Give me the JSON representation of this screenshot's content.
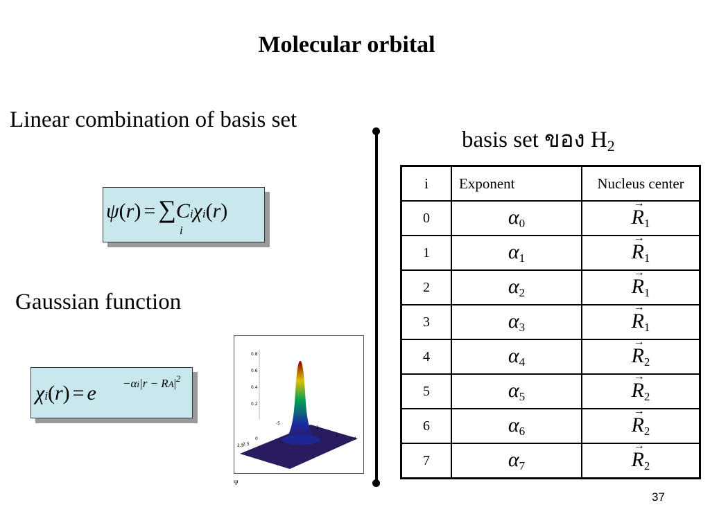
{
  "slide": {
    "title": "Molecular orbital",
    "linear_heading": "Linear combination of basis set",
    "gaussian_heading": "Gaussian function",
    "basis_heading_prefix": "basis set ของ H",
    "basis_heading_sub": "2",
    "page_number": "37",
    "psi_label": "Ψ"
  },
  "equations": {
    "mo": {
      "lhs_psi": "ψ",
      "paren_l": "(",
      "var_r": "r",
      "paren_r": ")",
      "equals": "=",
      "sum": "∑",
      "sum_index": "i",
      "C": "C",
      "C_sub": "i",
      "chi": "χ",
      "chi_sub": "i"
    },
    "gauss": {
      "chi": "χ",
      "chi_sub": "i",
      "var_r": "r",
      "equals": "=",
      "e": "e",
      "exponent": "−α",
      "exponent_sub": "i",
      "abs_expr": "|r − R",
      "abs_sub": "A",
      "power": "2"
    }
  },
  "table": {
    "headers": [
      "i",
      "Exponent",
      "Nucleus center"
    ],
    "rows": [
      {
        "i": "0",
        "alpha": "α",
        "alpha_sub": "0",
        "R": "R",
        "R_sub": "1"
      },
      {
        "i": "1",
        "alpha": "α",
        "alpha_sub": "1",
        "R": "R",
        "R_sub": "1"
      },
      {
        "i": "2",
        "alpha": "α",
        "alpha_sub": "2",
        "R": "R",
        "R_sub": "1"
      },
      {
        "i": "3",
        "alpha": "α",
        "alpha_sub": "3",
        "R": "R",
        "R_sub": "1"
      },
      {
        "i": "4",
        "alpha": "α",
        "alpha_sub": "4",
        "R": "R",
        "R_sub": "2"
      },
      {
        "i": "5",
        "alpha": "α",
        "alpha_sub": "5",
        "R": "R",
        "R_sub": "2"
      },
      {
        "i": "6",
        "alpha": "α",
        "alpha_sub": "6",
        "R": "R",
        "R_sub": "2"
      },
      {
        "i": "7",
        "alpha": "α",
        "alpha_sub": "7",
        "R": "R",
        "R_sub": "2"
      }
    ]
  },
  "plot": {
    "z_ticks": [
      "0.8",
      "0.6",
      "0.4",
      "0.2"
    ],
    "axis_ticks": [
      "-2.5",
      "-5",
      "2",
      "2.5",
      "0",
      "2",
      "4"
    ],
    "colors": {
      "peak": "#8b0000",
      "mid": "#00a050",
      "low": "#1a2aa0",
      "base": "#2a1a5e"
    }
  }
}
